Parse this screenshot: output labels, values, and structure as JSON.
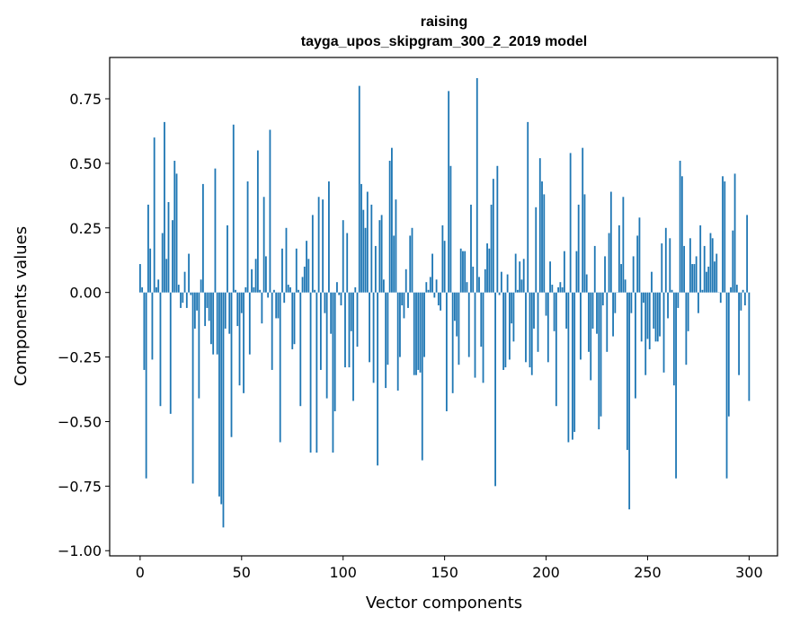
{
  "chart_data": {
    "type": "bar",
    "title": "raising",
    "subtitle": "tayga_upos_skipgram_300_2_2019 model",
    "xlabel": "Vector components",
    "ylabel": "Components values",
    "xlim": [
      -15,
      314
    ],
    "ylim": [
      -1.02,
      0.91
    ],
    "xticks": [
      0,
      50,
      100,
      150,
      200,
      250,
      300
    ],
    "yticks": [
      -1.0,
      -0.75,
      -0.5,
      -0.25,
      0.0,
      0.25,
      0.5,
      0.75
    ],
    "ytick_labels": [
      "−1.00",
      "−0.75",
      "−0.50",
      "−0.25",
      "0.00",
      "0.25",
      "0.50",
      "0.75"
    ],
    "bar_color": "#1f77b4",
    "grid": false,
    "values": [
      0.11,
      0.02,
      -0.3,
      -0.72,
      0.34,
      0.17,
      -0.26,
      0.6,
      0.02,
      0.05,
      -0.44,
      0.23,
      0.66,
      0.13,
      0.35,
      -0.47,
      0.28,
      0.51,
      0.46,
      0.03,
      -0.06,
      -0.04,
      0.08,
      -0.06,
      0.15,
      -0.01,
      -0.74,
      -0.14,
      -0.07,
      -0.41,
      0.05,
      0.42,
      -0.13,
      -0.06,
      -0.11,
      -0.2,
      -0.24,
      0.48,
      -0.24,
      -0.79,
      -0.82,
      -0.91,
      -0.14,
      0.26,
      -0.16,
      -0.56,
      0.65,
      0.01,
      -0.13,
      -0.36,
      -0.08,
      -0.39,
      0.02,
      0.43,
      -0.24,
      0.09,
      0.02,
      0.13,
      0.55,
      0.01,
      -0.12,
      0.37,
      0.14,
      -0.02,
      0.63,
      -0.3,
      0.01,
      -0.1,
      -0.1,
      -0.58,
      0.17,
      -0.04,
      0.25,
      0.03,
      0.02,
      -0.22,
      -0.2,
      0.17,
      0.01,
      -0.44,
      0.06,
      0.1,
      0.2,
      0.13,
      -0.62,
      0.3,
      0.01,
      -0.62,
      0.37,
      -0.3,
      0.36,
      -0.08,
      -0.41,
      0.43,
      -0.16,
      -0.62,
      -0.46,
      0.04,
      -0.01,
      -0.05,
      0.28,
      -0.29,
      0.23,
      -0.29,
      -0.15,
      -0.42,
      0.02,
      -0.21,
      0.8,
      0.42,
      0.32,
      0.25,
      0.39,
      -0.27,
      0.34,
      -0.35,
      0.18,
      -0.67,
      0.28,
      0.3,
      0.05,
      -0.37,
      -0.28,
      0.51,
      0.56,
      0.22,
      0.36,
      -0.38,
      -0.25,
      -0.05,
      -0.1,
      0.09,
      -0.06,
      0.22,
      0.25,
      -0.32,
      -0.32,
      -0.3,
      -0.31,
      -0.65,
      -0.25,
      0.04,
      0.01,
      0.06,
      0.15,
      -0.02,
      0.05,
      -0.05,
      -0.07,
      0.26,
      0.2,
      -0.46,
      0.78,
      0.49,
      -0.39,
      -0.11,
      -0.17,
      -0.28,
      0.17,
      0.16,
      0.16,
      0.04,
      -0.25,
      0.34,
      0.1,
      -0.33,
      0.83,
      0.06,
      -0.21,
      -0.35,
      0.09,
      0.19,
      0.17,
      0.34,
      0.44,
      -0.75,
      0.49,
      -0.01,
      0.08,
      -0.3,
      -0.29,
      0.07,
      -0.26,
      -0.12,
      -0.19,
      0.15,
      0.01,
      0.12,
      0.05,
      0.13,
      -0.27,
      0.66,
      -0.29,
      -0.32,
      -0.14,
      0.33,
      -0.23,
      0.52,
      0.43,
      0.38,
      -0.09,
      -0.27,
      0.12,
      0.03,
      -0.15,
      -0.44,
      0.02,
      0.04,
      0.02,
      0.16,
      -0.14,
      -0.58,
      0.54,
      -0.57,
      -0.54,
      0.16,
      0.34,
      -0.26,
      0.56,
      0.38,
      0.07,
      -0.23,
      -0.34,
      -0.14,
      0.18,
      -0.16,
      -0.53,
      -0.48,
      -0.05,
      0.14,
      -0.23,
      0.23,
      0.39,
      -0.17,
      -0.08,
      0.0,
      0.26,
      0.11,
      0.37,
      0.05,
      -0.61,
      -0.84,
      -0.08,
      0.14,
      -0.41,
      0.22,
      0.29,
      -0.19,
      -0.04,
      -0.32,
      -0.18,
      -0.22,
      0.08,
      -0.14,
      -0.19,
      -0.19,
      -0.17,
      0.19,
      -0.31,
      0.25,
      -0.1,
      0.21,
      0.01,
      -0.36,
      -0.72,
      -0.06,
      0.51,
      0.45,
      0.18,
      -0.28,
      -0.15,
      0.21,
      0.11,
      0.11,
      0.14,
      -0.08,
      0.26,
      0.01,
      0.18,
      0.08,
      0.1,
      0.23,
      0.21,
      0.12,
      0.15,
      0.0,
      -0.04,
      0.45,
      0.43,
      -0.72,
      -0.48,
      0.02,
      0.24,
      0.46,
      0.03,
      -0.32,
      -0.07,
      0.01,
      -0.05,
      0.3,
      -0.42
    ]
  }
}
